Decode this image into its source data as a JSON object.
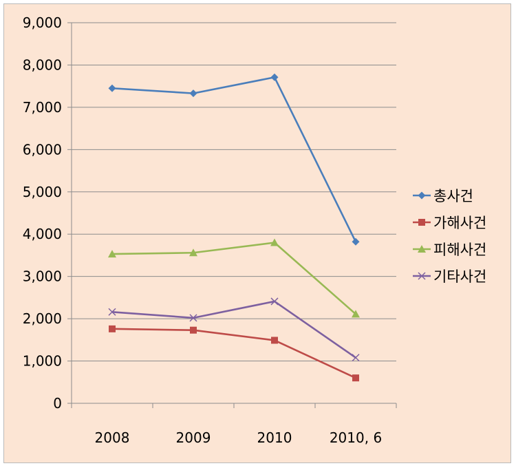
{
  "chart_data": {
    "type": "line",
    "title": "",
    "xlabel": "",
    "ylabel": "",
    "categories": [
      "2008",
      "2009",
      "2010",
      "2010, 6"
    ],
    "ylim": [
      0,
      9000
    ],
    "yticks": [
      0,
      1000,
      2000,
      3000,
      4000,
      5000,
      6000,
      7000,
      8000,
      9000
    ],
    "ytick_labels": [
      "0",
      "1,000",
      "2,000",
      "3,000",
      "4,000",
      "5,000",
      "6,000",
      "7,000",
      "8,000",
      "9,000"
    ],
    "grid": "horizontal",
    "legend_position": "right",
    "series": [
      {
        "name": "총사건",
        "values": [
          7450,
          7330,
          7710,
          3820
        ],
        "color": "#4a7ebb",
        "marker": "diamond"
      },
      {
        "name": "가해사건",
        "values": [
          1760,
          1730,
          1490,
          600
        ],
        "color": "#be4b48",
        "marker": "square"
      },
      {
        "name": "피해사건",
        "values": [
          3530,
          3560,
          3800,
          2110
        ],
        "color": "#98b954",
        "marker": "triangle"
      },
      {
        "name": "기타사건",
        "values": [
          2160,
          2020,
          2410,
          1080
        ],
        "color": "#7d60a0",
        "marker": "x"
      }
    ]
  }
}
